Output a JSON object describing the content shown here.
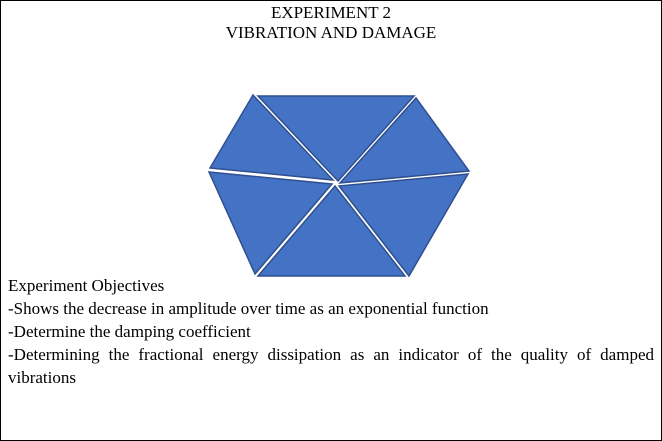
{
  "header": {
    "title": "EXPERIMENT 2",
    "subtitle": "VIBRATION AND DAMAGE"
  },
  "objectives": {
    "heading": "Experiment Objectives",
    "items": [
      "-Shows the decrease in amplitude over time as an exponential function",
      "-Determine the damping coefficient",
      "-Determining the fractional energy dissipation as an indicator of the quality of damped vibrations"
    ]
  }
}
